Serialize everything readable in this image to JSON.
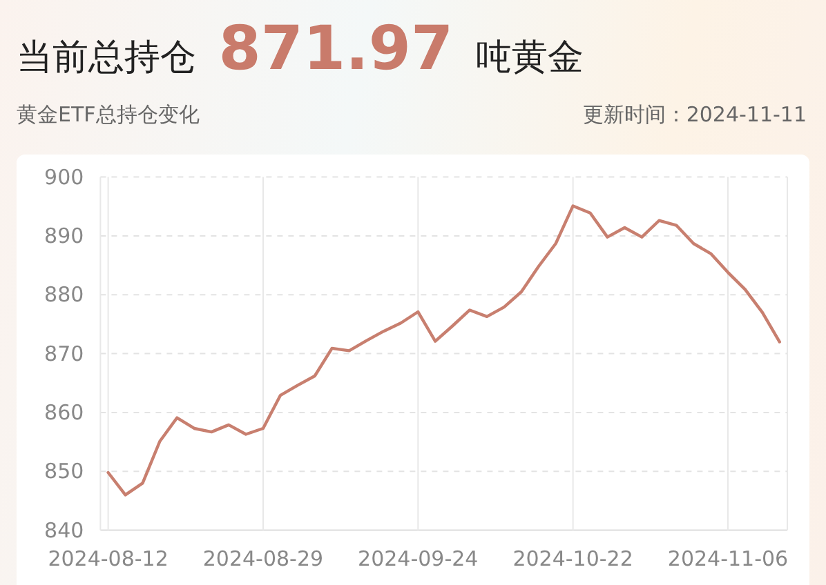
{
  "chart_data": {
    "type": "line",
    "title": "当前总持仓 **871.97** 吨黄金",
    "subtitle": "黄金ETF总持仓变化",
    "annotations": [
      "更新时间：2024-11-11"
    ],
    "categories": [
      "2024-08-12",
      null,
      null,
      null,
      null,
      null,
      null,
      null,
      null,
      "2024-08-29",
      null,
      null,
      null,
      null,
      null,
      null,
      null,
      null,
      "2024-09-24",
      null,
      null,
      null,
      null,
      null,
      null,
      null,
      null,
      "2024-10-22",
      null,
      null,
      null,
      null,
      null,
      null,
      null,
      null,
      "2024-11-06",
      null,
      null,
      null
    ],
    "series": [
      {
        "color": "#c87f6f",
        "values": [
          849.8,
          846.0,
          848.0,
          855.1,
          859.1,
          857.3,
          856.7,
          857.9,
          856.3,
          857.3,
          862.9,
          864.6,
          866.2,
          870.9,
          870.5,
          872.2,
          873.8,
          875.2,
          877.1,
          872.1,
          874.7,
          877.4,
          876.3,
          877.9,
          880.5,
          884.8,
          888.7,
          895.1,
          893.9,
          889.8,
          891.4,
          889.8,
          892.6,
          891.8,
          888.7,
          887.0,
          883.8,
          880.9,
          877.0,
          872.0
        ]
      }
    ],
    "ylim": [
      840,
      900
    ],
    "yticks": [
      840,
      850,
      860,
      870,
      880,
      890,
      900
    ],
    "grid": true,
    "marker": "none",
    "line_style": "solid"
  }
}
